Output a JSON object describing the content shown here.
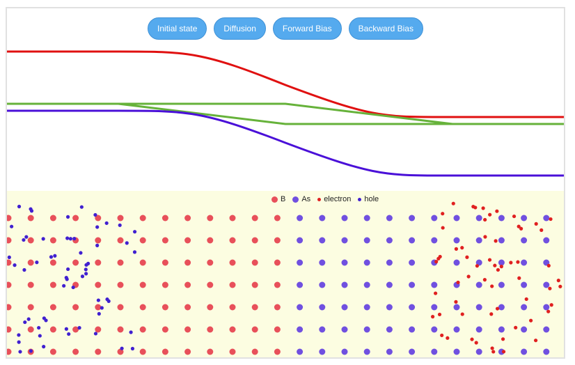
{
  "toolbar": {
    "buttons": [
      "Initial state",
      "Diffusion",
      "Forward Bias",
      "Backward Bias"
    ]
  },
  "legend": {
    "items": [
      {
        "label": "B",
        "color": "#e8505a",
        "kind": "ion"
      },
      {
        "label": "As",
        "color": "#7050e0",
        "kind": "ion"
      },
      {
        "label": "electron",
        "color": "#e02020",
        "kind": "carrier"
      },
      {
        "label": "hole",
        "color": "#4020d0",
        "kind": "carrier"
      }
    ]
  },
  "colors": {
    "conduction_band": "#e01010",
    "fermi_level": "#66b23a",
    "valence_band": "#4a10d8",
    "lattice_background": "#fcfde1",
    "button": "#55aaee"
  }
}
